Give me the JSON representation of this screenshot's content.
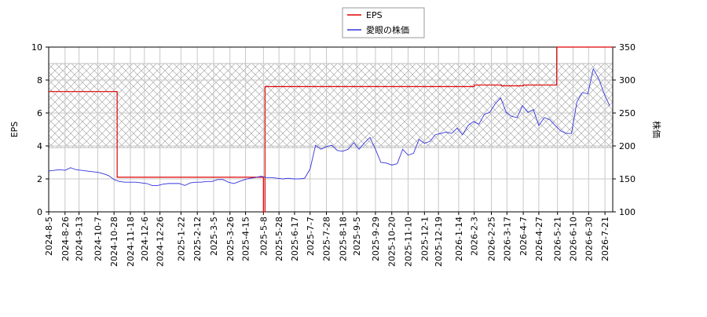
{
  "chart_data": {
    "type": "line",
    "y_label": "EPS",
    "y2_label": "株価",
    "xlim": [
      "2024-8-5",
      "2026-7-31"
    ],
    "xticks": [
      "2024-8-5",
      "2024-8-26",
      "2024-9-13",
      "2024-10-7",
      "2024-10-28",
      "2024-11-18",
      "2024-12-6",
      "2024-12-26",
      "2025-1-22",
      "2025-2-12",
      "2025-3-5",
      "2025-3-26",
      "2025-4-15",
      "2025-5-8",
      "2025-5-28",
      "2025-6-17",
      "2025-7-7",
      "2025-7-28",
      "2025-8-18",
      "2025-9-5",
      "2025-9-29",
      "2025-10-20",
      "2025-11-10",
      "2025-12-1",
      "2025-12-19",
      "2026-1-14",
      "2026-2-3",
      "2026-2-25",
      "2026-3-17",
      "2026-4-7",
      "2026-4-27",
      "2026-5-21",
      "2026-6-10",
      "2026-6-30",
      "2026-7-21"
    ],
    "ylim": [
      0,
      10
    ],
    "yticks": [
      0,
      2,
      4,
      6,
      8,
      10
    ],
    "y2lim": [
      100,
      350
    ],
    "y2ticks": [
      100,
      150,
      200,
      250,
      300,
      350
    ],
    "grid": true,
    "shaded_band": [
      3.9,
      9.0
    ],
    "series": [
      {
        "name": "EPS",
        "color": "#e00000",
        "step": true,
        "x": [
          "2024-8-5",
          "2024-11-1",
          "2025-5-8",
          "2025-5-10",
          "2026-2-3",
          "2026-3-10",
          "2026-4-7",
          "2026-5-20"
        ],
        "values": [
          7.3,
          2.1,
          0,
          7.6,
          7.7,
          7.65,
          7.7,
          10
        ]
      },
      {
        "name": "愛眼の株価",
        "color": "#3333dd",
        "axis": "y2",
        "x": [
          "2024-8-5",
          "2024-8-12",
          "2024-8-19",
          "2024-8-26",
          "2024-9-2",
          "2024-9-9",
          "2024-9-16",
          "2024-9-23",
          "2024-9-30",
          "2024-10-7",
          "2024-10-14",
          "2024-10-21",
          "2024-10-28",
          "2024-11-4",
          "2024-11-11",
          "2024-11-18",
          "2024-11-25",
          "2024-12-2",
          "2024-12-9",
          "2024-12-16",
          "2024-12-23",
          "2024-12-30",
          "2025-1-6",
          "2025-1-13",
          "2025-1-20",
          "2025-1-27",
          "2025-2-3",
          "2025-2-10",
          "2025-2-17",
          "2025-2-24",
          "2025-3-3",
          "2025-3-10",
          "2025-3-17",
          "2025-3-24",
          "2025-3-31",
          "2025-4-7",
          "2025-4-14",
          "2025-4-21",
          "2025-4-28",
          "2025-5-5",
          "2025-5-12",
          "2025-5-19",
          "2025-5-26",
          "2025-6-2",
          "2025-6-9",
          "2025-6-16",
          "2025-6-23",
          "2025-6-30",
          "2025-7-7",
          "2025-7-14",
          "2025-7-21",
          "2025-7-28",
          "2025-8-4",
          "2025-8-11",
          "2025-8-18",
          "2025-8-25",
          "2025-9-1",
          "2025-9-8",
          "2025-9-15",
          "2025-9-22",
          "2025-9-29",
          "2025-10-6",
          "2025-10-13",
          "2025-10-20",
          "2025-10-27",
          "2025-11-3",
          "2025-11-10",
          "2025-11-17",
          "2025-11-24",
          "2025-12-1",
          "2025-12-8",
          "2025-12-15",
          "2025-12-22",
          "2025-12-29",
          "2026-1-5",
          "2026-1-12",
          "2026-1-19",
          "2026-1-26",
          "2026-2-2",
          "2026-2-9",
          "2026-2-16",
          "2026-2-23",
          "2026-3-2",
          "2026-3-9",
          "2026-3-16",
          "2026-3-23",
          "2026-3-30",
          "2026-4-6",
          "2026-4-13",
          "2026-4-20",
          "2026-4-27",
          "2026-5-4",
          "2026-5-11",
          "2026-5-18",
          "2026-5-25",
          "2026-6-1",
          "2026-6-8",
          "2026-6-15",
          "2026-6-22",
          "2026-6-29",
          "2026-7-6",
          "2026-7-13",
          "2026-7-20",
          "2026-7-27"
        ],
        "values": [
          162,
          163,
          164,
          163,
          167,
          164,
          163,
          162,
          161,
          160,
          158,
          155,
          149,
          146,
          145,
          145,
          145,
          144,
          143,
          140,
          140,
          142,
          143,
          143,
          143,
          140,
          144,
          145,
          145,
          146,
          146,
          149,
          149,
          145,
          143,
          146,
          149,
          151,
          152,
          154,
          152,
          152,
          151,
          150,
          151,
          150,
          150,
          151,
          165,
          201,
          195,
          199,
          201,
          193,
          192,
          195,
          205,
          195,
          205,
          213,
          195,
          175,
          174,
          171,
          173,
          195,
          186,
          189,
          210,
          204,
          207,
          217,
          219,
          221,
          219,
          227,
          217,
          231,
          237,
          233,
          248,
          251,
          264,
          273,
          251,
          245,
          243,
          261,
          251,
          255,
          231,
          243,
          240,
          231,
          223,
          219,
          219,
          267,
          281,
          279,
          317,
          302,
          279,
          261
        ]
      }
    ]
  }
}
